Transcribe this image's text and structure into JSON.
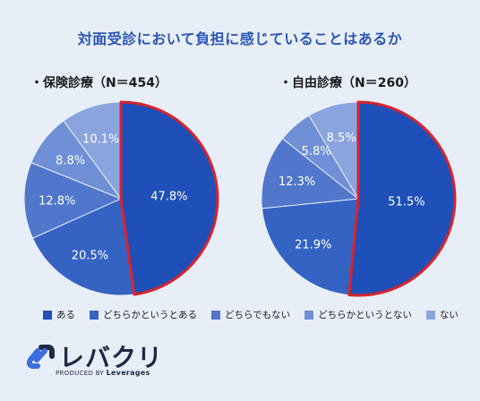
{
  "title": "対面受診において負担に感じていることはあるか",
  "chart_data": [
    {
      "type": "pie",
      "title": "・保険診療（N＝454）",
      "categories": [
        "ある",
        "どちらかというとある",
        "どちらでもない",
        "どちらかというとない",
        "ない"
      ],
      "values": [
        47.8,
        20.5,
        12.8,
        8.8,
        10.1
      ],
      "labels": [
        "47.8%",
        "20.5%",
        "12.8%",
        "8.8%",
        "10.1%"
      ]
    },
    {
      "type": "pie",
      "title": "・自由診療（N＝260）",
      "categories": [
        "ある",
        "どちらかというとある",
        "どちらでもない",
        "どちらかというとない",
        "ない"
      ],
      "values": [
        51.5,
        21.9,
        12.3,
        5.8,
        8.5
      ],
      "labels": [
        "51.5%",
        "21.9%",
        "12.3%",
        "5.8%",
        "8.5%"
      ]
    }
  ],
  "legend": {
    "placement": "bottom",
    "items": [
      {
        "label": "ある",
        "color": "#1f4fb8"
      },
      {
        "label": "どちらかというとある",
        "color": "#3563c4"
      },
      {
        "label": "どちらでもない",
        "color": "#5077cc"
      },
      {
        "label": "どちらかというとない",
        "color": "#6f8fd6"
      },
      {
        "label": "ない",
        "color": "#8aa5de"
      }
    ]
  },
  "colors": {
    "highlight_border": "#d9232d",
    "title": "#2a55b8"
  },
  "logo": {
    "name": "レバクリ",
    "produced_by": "PRODUCED BY",
    "company": "Leverages"
  }
}
